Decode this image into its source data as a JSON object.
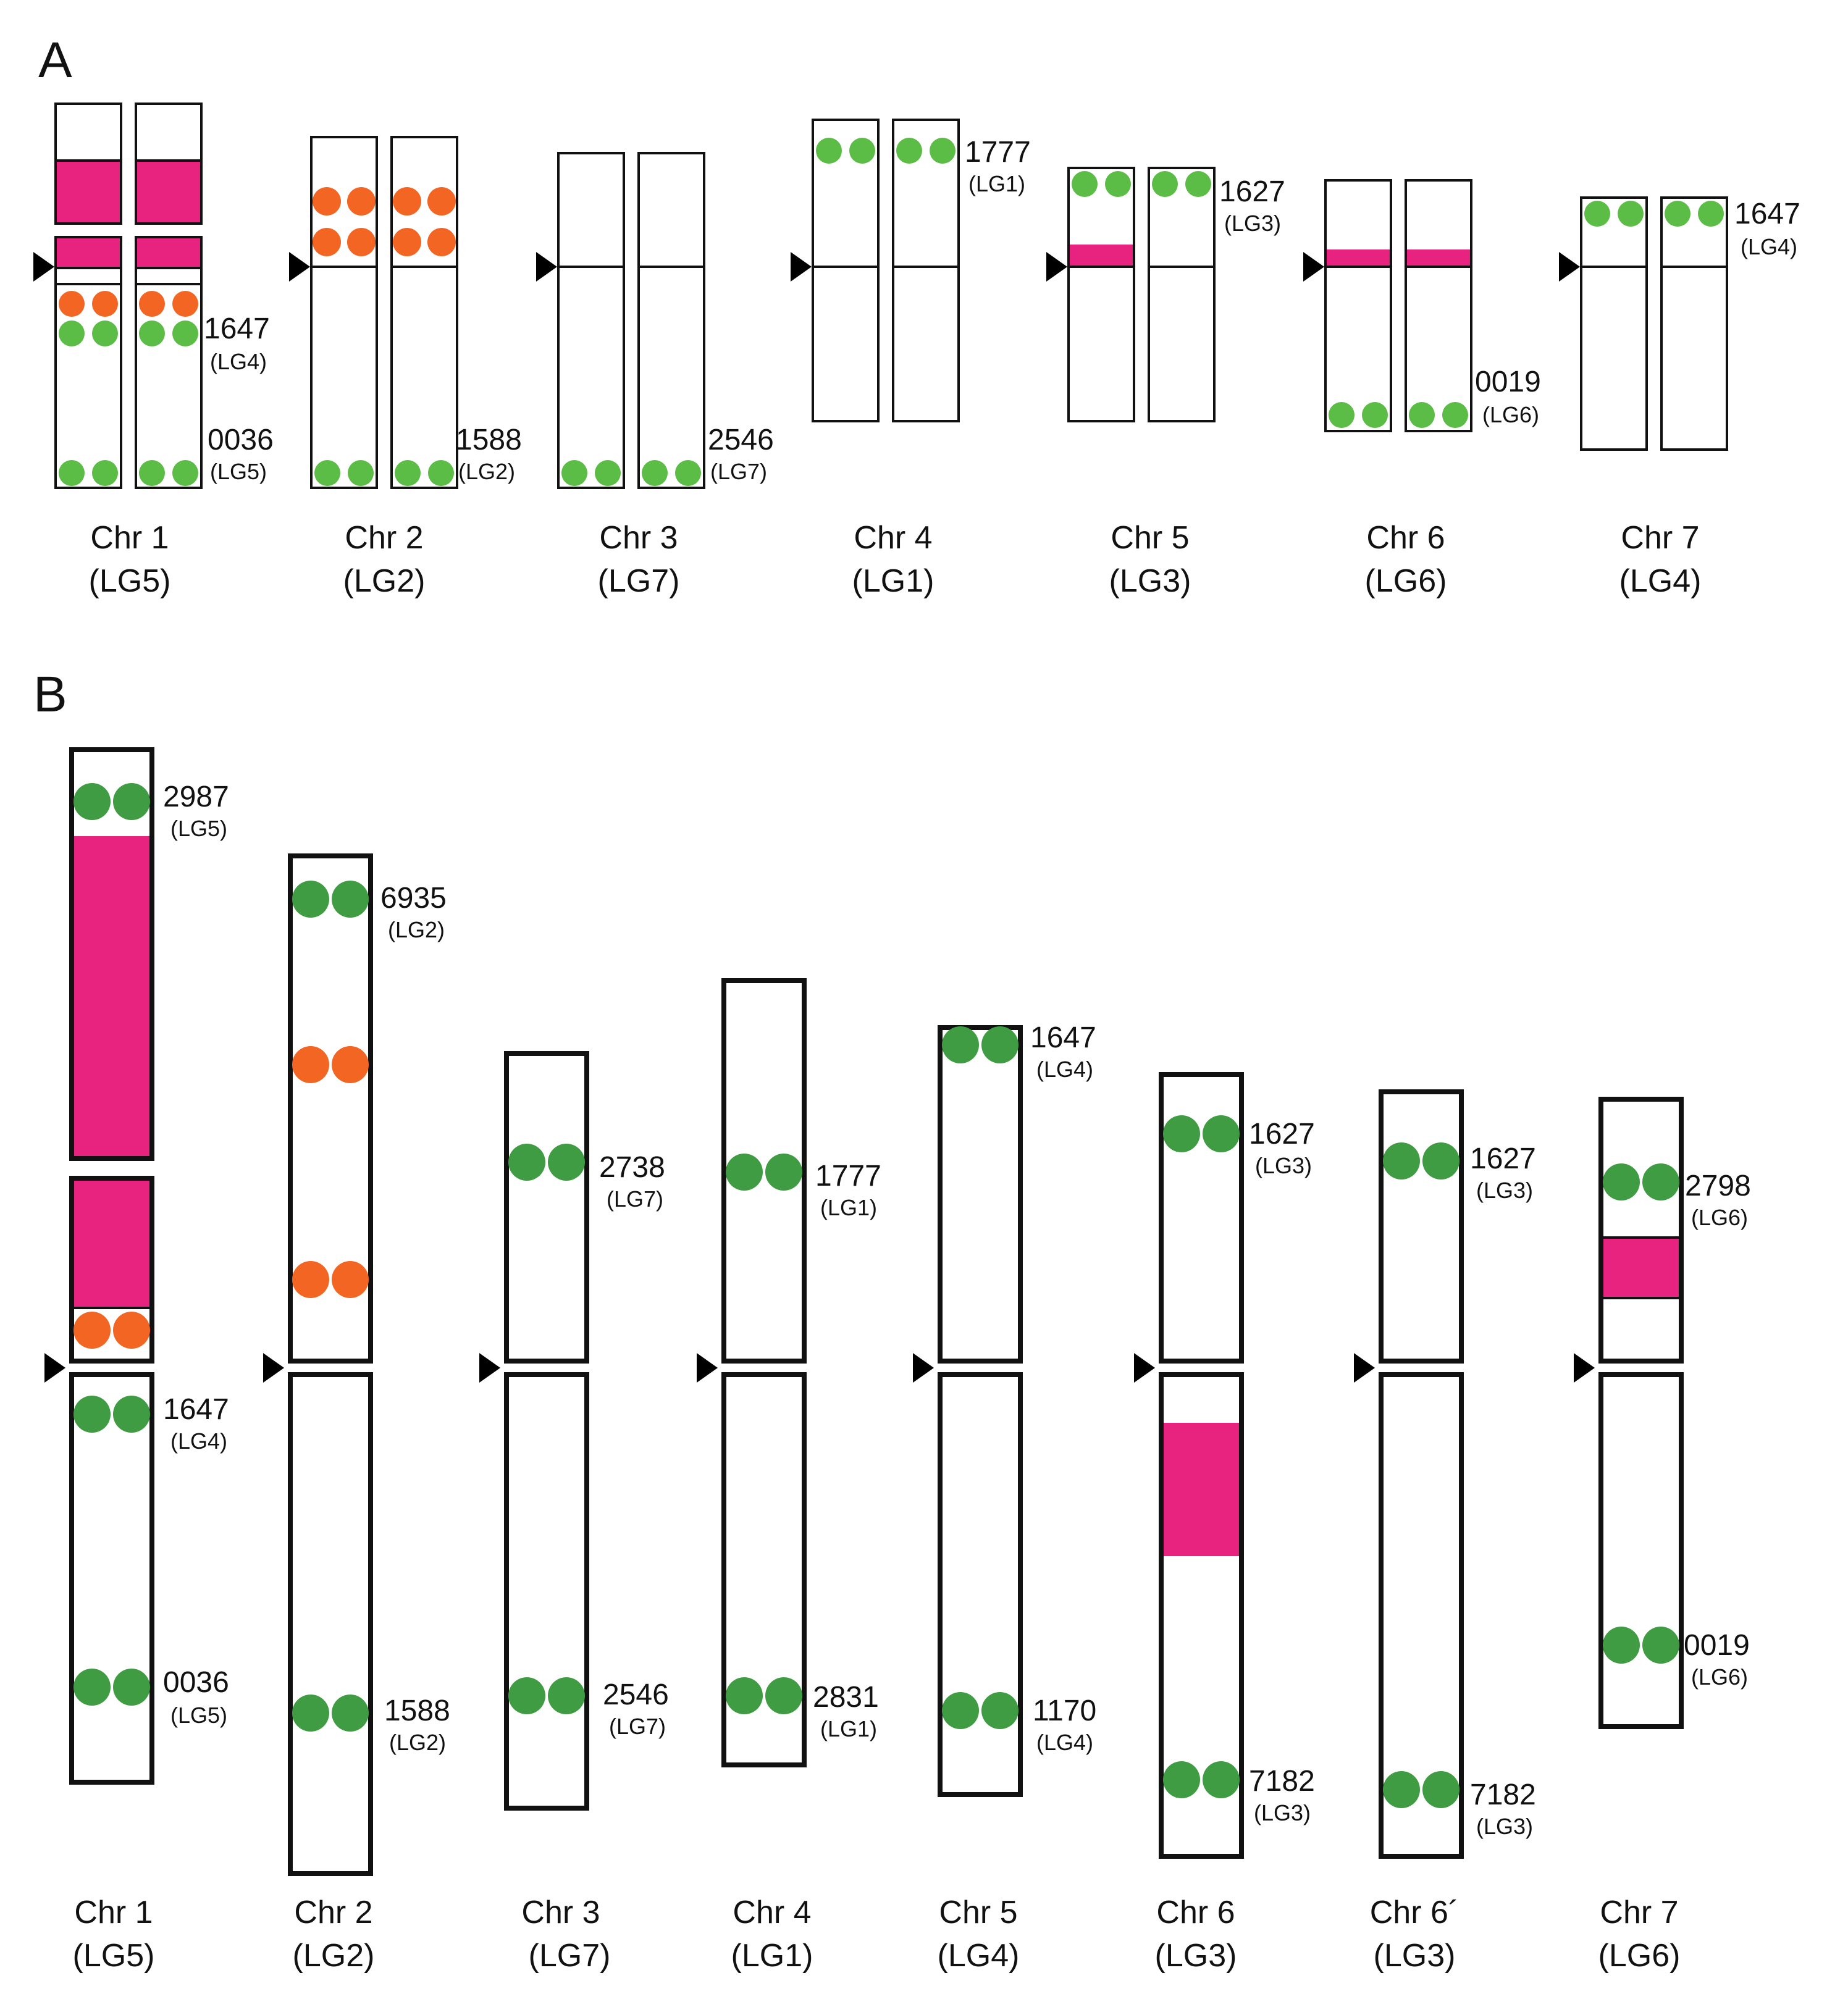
{
  "colors": {
    "green": "#5bbd45",
    "green_b": "#3f9c43",
    "orange": "#f26522",
    "magenta": "#e8237f",
    "stroke": "#111111"
  },
  "panels": [
    {
      "letter": "A",
      "chromosomes": [
        {
          "name": "Chr 1",
          "lg": "(LG5)",
          "markers": [
            {
              "id": "1647",
              "lg": "(LG4)"
            },
            {
              "id": "0036",
              "lg": "(LG5)"
            }
          ]
        },
        {
          "name": "Chr 2",
          "lg": "(LG2)",
          "markers": [
            {
              "id": "1588",
              "lg": "(LG2)"
            }
          ]
        },
        {
          "name": "Chr 3",
          "lg": "(LG7)",
          "markers": [
            {
              "id": "2546",
              "lg": "(LG7)"
            }
          ]
        },
        {
          "name": "Chr 4",
          "lg": "(LG1)",
          "markers": [
            {
              "id": "1777",
              "lg": "(LG1)"
            }
          ]
        },
        {
          "name": "Chr 5",
          "lg": "(LG3)",
          "markers": [
            {
              "id": "1627",
              "lg": "(LG3)"
            }
          ]
        },
        {
          "name": "Chr 6",
          "lg": "(LG6)",
          "markers": [
            {
              "id": "0019",
              "lg": "(LG6)"
            }
          ]
        },
        {
          "name": "Chr 7",
          "lg": "(LG4)",
          "markers": [
            {
              "id": "1647",
              "lg": "(LG4)"
            }
          ]
        }
      ]
    },
    {
      "letter": "B",
      "chromosomes": [
        {
          "name": "Chr 1",
          "lg": "(LG5)",
          "markers": [
            {
              "id": "2987",
              "lg": "(LG5)"
            },
            {
              "id": "1647",
              "lg": "(LG4)"
            },
            {
              "id": "0036",
              "lg": "(LG5)"
            }
          ]
        },
        {
          "name": "Chr 2",
          "lg": "(LG2)",
          "markers": [
            {
              "id": "6935",
              "lg": "(LG2)"
            },
            {
              "id": "1588",
              "lg": "(LG2)"
            }
          ]
        },
        {
          "name": "Chr 3",
          "lg": "(LG7)",
          "markers": [
            {
              "id": "2738",
              "lg": "(LG7)"
            },
            {
              "id": "2546",
              "lg": "(LG7)"
            }
          ]
        },
        {
          "name": "Chr 4",
          "lg": "(LG1)",
          "markers": [
            {
              "id": "1777",
              "lg": "(LG1)"
            },
            {
              "id": "2831",
              "lg": "(LG1)"
            }
          ]
        },
        {
          "name": "Chr 5",
          "lg": "(LG4)",
          "markers": [
            {
              "id": "1647",
              "lg": "(LG4)"
            },
            {
              "id": "1170",
              "lg": "(LG4)"
            }
          ]
        },
        {
          "name": "Chr 6",
          "lg": "(LG3)",
          "markers": [
            {
              "id": "1627",
              "lg": "(LG3)"
            },
            {
              "id": "7182",
              "lg": "(LG3)"
            }
          ]
        },
        {
          "name": "Chr 6´",
          "lg": "(LG3)",
          "markers": [
            {
              "id": "1627",
              "lg": "(LG3)"
            },
            {
              "id": "7182",
              "lg": "(LG3)"
            }
          ]
        },
        {
          "name": "Chr 7",
          "lg": "(LG6)",
          "markers": [
            {
              "id": "2798",
              "lg": "(LG6)"
            },
            {
              "id": "0019",
              "lg": "(LG6)"
            }
          ]
        }
      ]
    }
  ]
}
